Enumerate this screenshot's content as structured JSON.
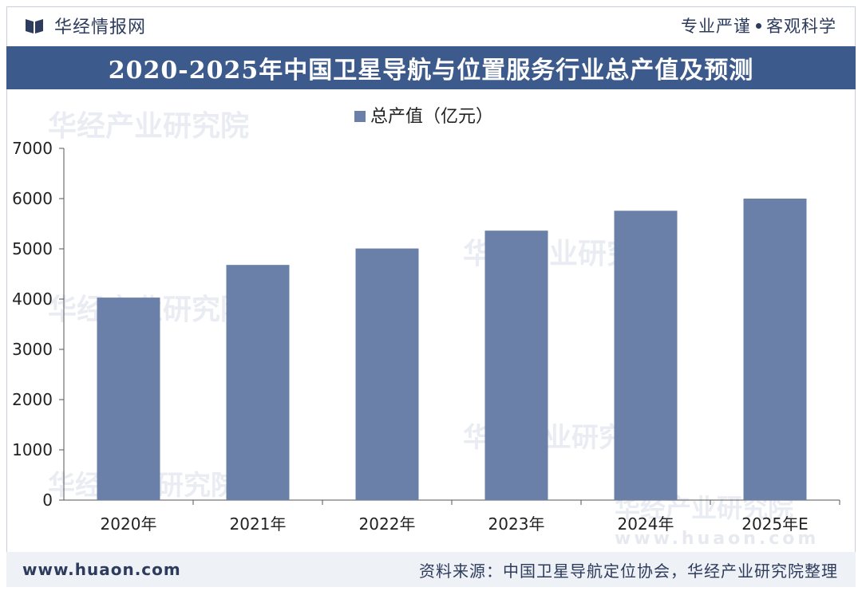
{
  "header": {
    "brand_name": "华经情报网",
    "slogan_left": "专业严谨",
    "slogan_right": "客观科学"
  },
  "footer": {
    "url": "www.huaon.com",
    "source": "资料来源：中国卫星导航定位协会，华经产业研究院整理"
  },
  "watermarks": {
    "text": "华经产业研究院",
    "url": "www.huaon.com"
  },
  "colors": {
    "bar": "#6a80a8",
    "title_bg": "#3c5a8c",
    "text": "#2d3b5c"
  },
  "chart_data": {
    "type": "bar",
    "title": "2020-2025年中国卫星导航与位置服务行业总产值及预测",
    "categories": [
      "2020年",
      "2021年",
      "2022年",
      "2023年",
      "2024年",
      "2025年E"
    ],
    "series": [
      {
        "name": "总产值（亿元）",
        "values": [
          4030,
          4680,
          5007,
          5362,
          5758,
          6000
        ]
      }
    ],
    "y_ticks": [
      0,
      1000,
      2000,
      3000,
      4000,
      5000,
      6000,
      7000
    ],
    "ylim": [
      0,
      7000
    ],
    "legend_position": "top-center",
    "xlabel": "",
    "ylabel": ""
  }
}
